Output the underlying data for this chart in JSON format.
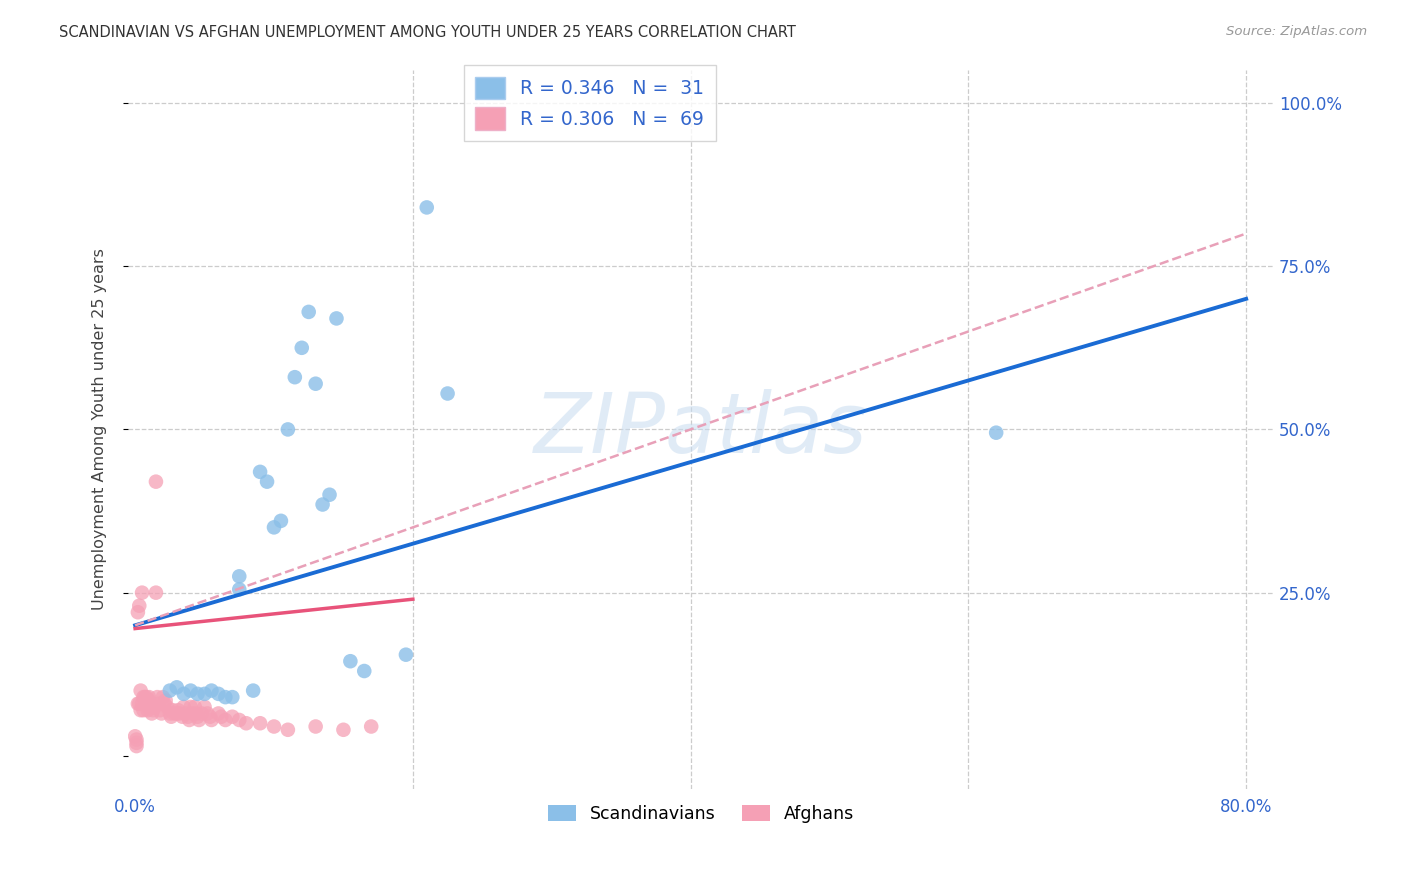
{
  "title": "SCANDINAVIAN VS AFGHAN UNEMPLOYMENT AMONG YOUTH UNDER 25 YEARS CORRELATION CHART",
  "source": "Source: ZipAtlas.com",
  "ylabel": "Unemployment Among Youth under 25 years",
  "xlim": [
    -0.005,
    0.82
  ],
  "ylim": [
    -0.05,
    1.05
  ],
  "watermark": "ZIPatlas",
  "legend_blue_r": "R = 0.346",
  "legend_blue_n": "N =  31",
  "legend_pink_r": "R = 0.306",
  "legend_pink_n": "N =  69",
  "scandinavian_color": "#8bbfe8",
  "afghan_color": "#f5a0b5",
  "regression_blue_color": "#1a6bd4",
  "regression_pink_solid_color": "#e8537a",
  "regression_pink_dash_color": "#e8a0b8",
  "blue_reg": [
    0.0,
    0.2,
    0.8,
    0.7
  ],
  "pink_solid_reg": [
    0.0,
    0.195,
    0.2,
    0.24
  ],
  "pink_dash_reg": [
    0.0,
    0.2,
    0.8,
    0.8
  ],
  "blue_x": [
    0.075,
    0.075,
    0.085,
    0.09,
    0.095,
    0.1,
    0.105,
    0.11,
    0.115,
    0.12,
    0.125,
    0.13,
    0.135,
    0.14,
    0.145,
    0.155,
    0.165,
    0.195,
    0.21,
    0.225,
    0.62,
    0.025,
    0.03,
    0.035,
    0.04,
    0.045,
    0.05,
    0.055,
    0.06,
    0.065,
    0.07
  ],
  "blue_y": [
    0.275,
    0.255,
    0.1,
    0.435,
    0.42,
    0.35,
    0.36,
    0.5,
    0.58,
    0.625,
    0.68,
    0.57,
    0.385,
    0.4,
    0.67,
    0.145,
    0.13,
    0.155,
    0.84,
    0.555,
    0.495,
    0.1,
    0.105,
    0.095,
    0.1,
    0.095,
    0.095,
    0.1,
    0.095,
    0.09,
    0.09
  ],
  "pink_x": [
    0.0,
    0.001,
    0.001,
    0.001,
    0.002,
    0.002,
    0.003,
    0.003,
    0.004,
    0.004,
    0.005,
    0.005,
    0.006,
    0.006,
    0.007,
    0.008,
    0.009,
    0.01,
    0.01,
    0.01,
    0.012,
    0.012,
    0.013,
    0.014,
    0.015,
    0.015,
    0.016,
    0.017,
    0.018,
    0.019,
    0.02,
    0.021,
    0.022,
    0.023,
    0.025,
    0.026,
    0.027,
    0.028,
    0.03,
    0.031,
    0.032,
    0.034,
    0.035,
    0.036,
    0.038,
    0.039,
    0.04,
    0.041,
    0.043,
    0.044,
    0.045,
    0.046,
    0.048,
    0.05,
    0.052,
    0.054,
    0.055,
    0.06,
    0.062,
    0.065,
    0.07,
    0.075,
    0.08,
    0.09,
    0.1,
    0.11,
    0.13,
    0.15,
    0.17
  ],
  "pink_y": [
    0.03,
    0.025,
    0.02,
    0.015,
    0.22,
    0.08,
    0.23,
    0.08,
    0.1,
    0.07,
    0.25,
    0.08,
    0.09,
    0.07,
    0.09,
    0.09,
    0.07,
    0.09,
    0.085,
    0.075,
    0.075,
    0.065,
    0.07,
    0.075,
    0.42,
    0.25,
    0.09,
    0.08,
    0.07,
    0.065,
    0.09,
    0.08,
    0.085,
    0.075,
    0.065,
    0.06,
    0.07,
    0.065,
    0.065,
    0.07,
    0.065,
    0.06,
    0.075,
    0.065,
    0.06,
    0.055,
    0.075,
    0.065,
    0.075,
    0.065,
    0.06,
    0.055,
    0.065,
    0.075,
    0.065,
    0.06,
    0.055,
    0.065,
    0.06,
    0.055,
    0.06,
    0.055,
    0.05,
    0.05,
    0.045,
    0.04,
    0.045,
    0.04,
    0.045
  ]
}
